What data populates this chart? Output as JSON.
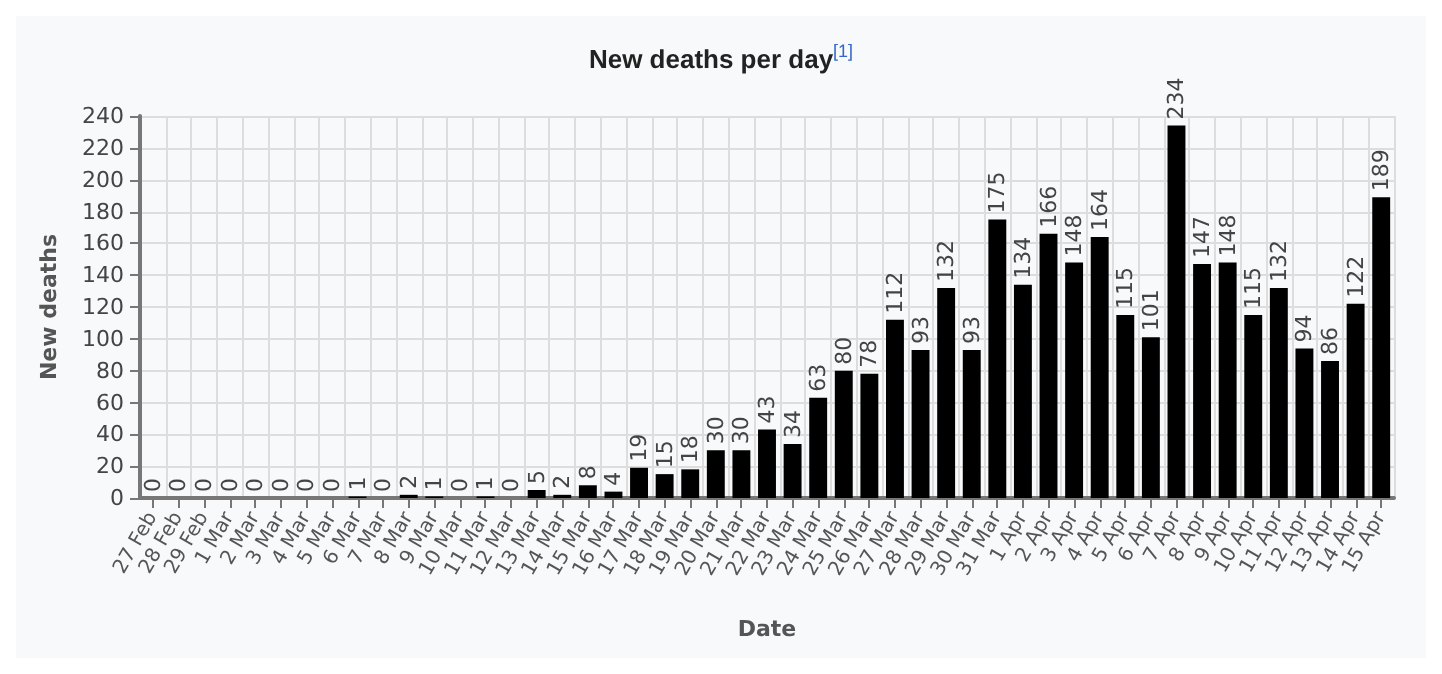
{
  "chart_data": {
    "type": "bar",
    "title": "New deaths per day$^{[1]}$",
    "xlabel": "Date",
    "ylabel": "New deaths",
    "categories": [
      "27 Feb",
      "28 Feb",
      "29 Feb",
      "1 Mar",
      "2 Mar",
      "3 Mar",
      "4 Mar",
      "5 Mar",
      "6 Mar",
      "7 Mar",
      "8 Mar",
      "9 Mar",
      "10 Mar",
      "11 Mar",
      "12 Mar",
      "13 Mar",
      "14 Mar",
      "15 Mar",
      "16 Mar",
      "17 Mar",
      "18 Mar",
      "19 Mar",
      "20 Mar",
      "21 Mar",
      "22 Mar",
      "23 Mar",
      "24 Mar",
      "25 Mar",
      "26 Mar",
      "27 Mar",
      "28 Mar",
      "29 Mar",
      "30 Mar",
      "31 Mar",
      "1 Apr",
      "2 Apr",
      "3 Apr",
      "4 Apr",
      "5 Apr",
      "6 Apr",
      "7 Apr",
      "8 Apr",
      "9 Apr",
      "10 Apr",
      "11 Apr",
      "12 Apr",
      "13 Apr",
      "14 Apr",
      "15 Apr"
    ],
    "values": [
      0,
      0,
      0,
      0,
      0,
      0,
      0,
      0,
      1,
      0,
      2,
      1,
      0,
      1,
      0,
      5,
      2,
      8,
      4,
      19,
      15,
      18,
      30,
      30,
      43,
      34,
      63,
      80,
      78,
      112,
      93,
      132,
      93,
      175,
      134,
      166,
      148,
      164,
      115,
      101,
      234,
      147,
      148,
      115,
      132,
      94,
      86,
      122,
      189
    ],
    "color": "#000000",
    "ylim": [
      0,
      240
    ],
    "yticks": [
      0,
      20,
      40,
      60,
      80,
      100,
      120,
      140,
      160,
      180,
      200,
      220,
      240
    ],
    "grid": true,
    "data_labels": true
  }
}
